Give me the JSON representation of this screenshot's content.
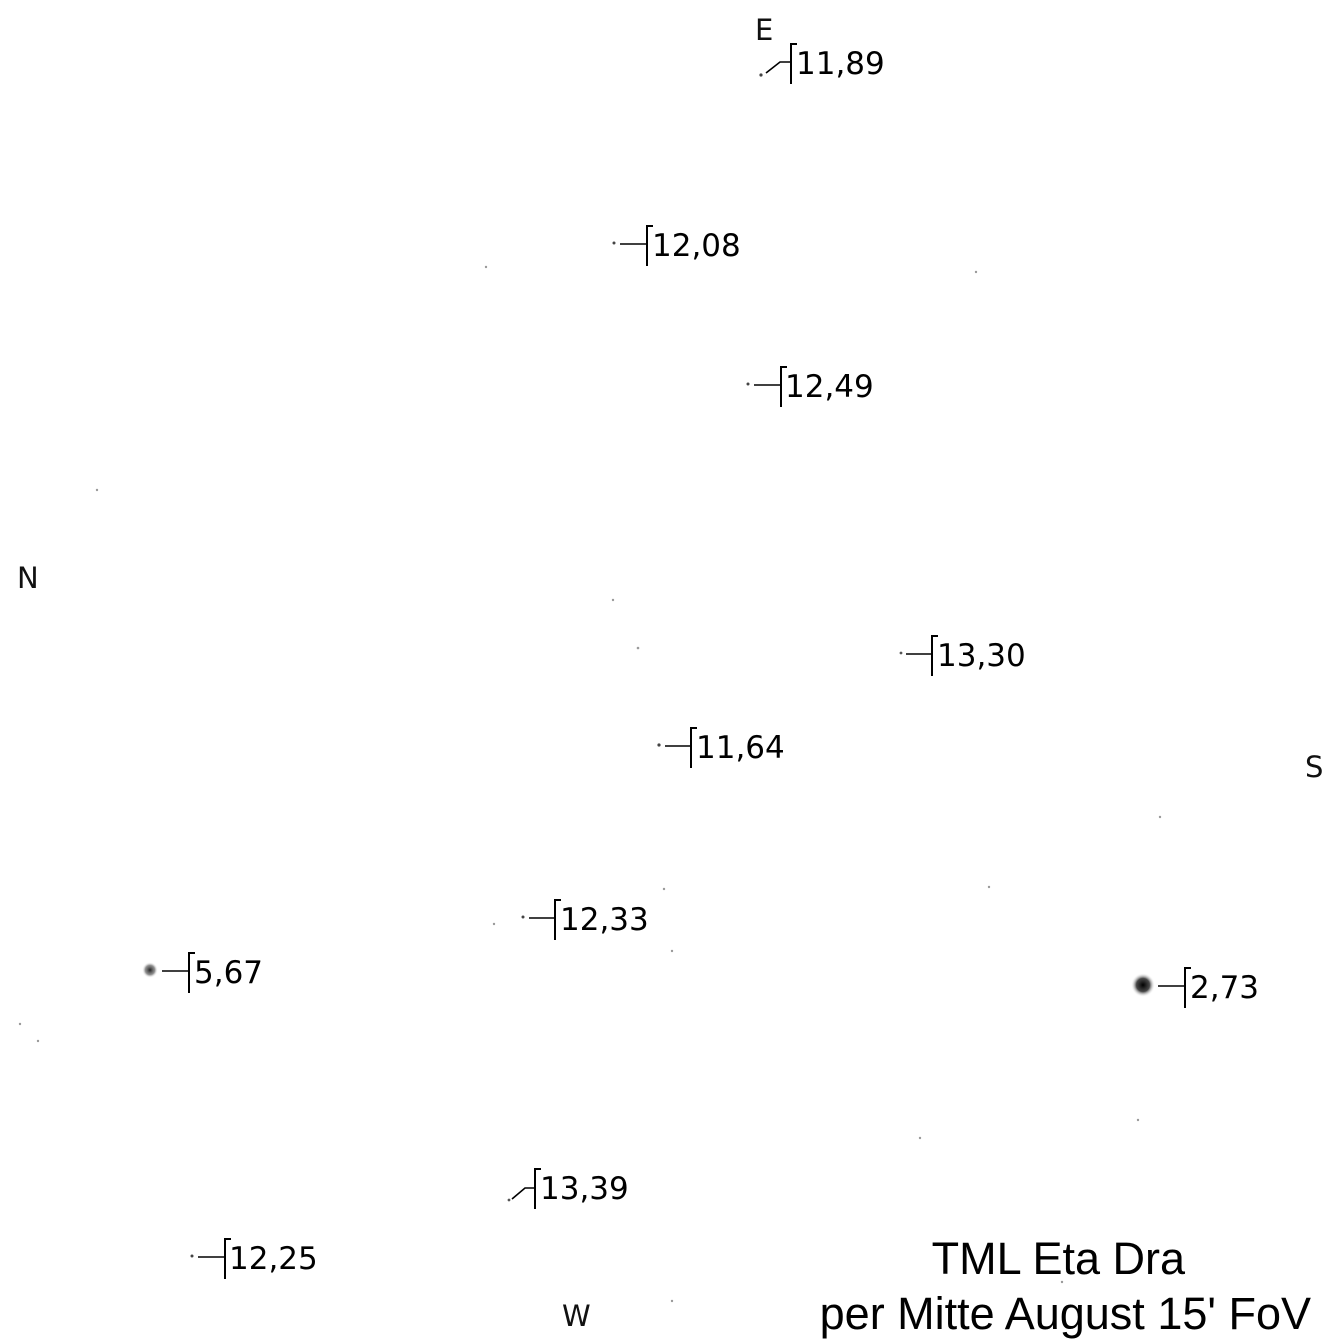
{
  "compass": {
    "east": "E",
    "north": "N",
    "south": "S",
    "west": "W"
  },
  "caption": {
    "title": "TML Eta Dra",
    "subtitle": "per Mitte August 15' FoV"
  },
  "colors": {
    "ink": "#000000",
    "faint_star": "#9a9a9a"
  },
  "stars": [
    {
      "id": "star-1189",
      "label": "11,89"
    },
    {
      "id": "star-1208",
      "label": "12,08"
    },
    {
      "id": "star-1249",
      "label": "12,49"
    },
    {
      "id": "star-1330",
      "label": "13,30"
    },
    {
      "id": "star-1164",
      "label": "11,64"
    },
    {
      "id": "star-1233",
      "label": "12,33"
    },
    {
      "id": "star-567",
      "label": "5,67"
    },
    {
      "id": "star-273",
      "label": "2,73"
    },
    {
      "id": "star-1339",
      "label": "13,39"
    },
    {
      "id": "star-1225",
      "label": "12,25"
    }
  ]
}
